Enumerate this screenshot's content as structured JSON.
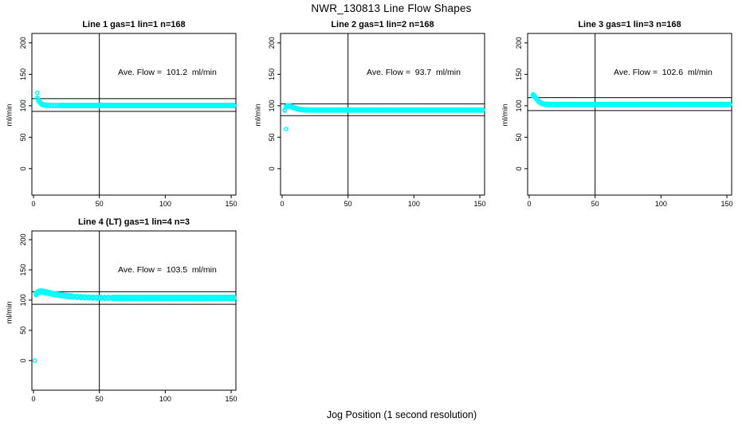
{
  "chart_data": {
    "type": "scatter",
    "main_title": "NWR_130813  Line Flow Shapes",
    "shared_xlabel": "Jog Position (1 second resolution)",
    "point_color": "#00FFFF",
    "line_color": "#000000",
    "axes": {
      "x_ticks": [
        0,
        50,
        100,
        150
      ],
      "y_ticks": [
        0,
        50,
        100,
        150,
        200
      ],
      "xlim": [
        -1.2,
        153.6
      ],
      "ylim": [
        -42,
        215
      ],
      "grid": false
    },
    "panels": [
      {
        "title": "Line 1 gas=1 lin=1 n=168",
        "ylabel": "ml/min",
        "annotation": "Ave. Flow =  101.2  ml/min",
        "ave_flow_ml_min": 101.2,
        "n": 168,
        "vline_x": 50,
        "ref_lines": [
          111.3,
          91.1
        ],
        "runs_offsets": [
          -0.7,
          0.7
        ],
        "outliers": [
          [
            3,
            120.5
          ]
        ],
        "head_points": [
          [
            3,
            112
          ],
          [
            4,
            108
          ],
          [
            5,
            105.2
          ],
          [
            6,
            103.2
          ],
          [
            7,
            101.9
          ],
          [
            8,
            101.2
          ],
          [
            9,
            100.9
          ],
          [
            10,
            100.7
          ],
          [
            12,
            100.6
          ],
          [
            14,
            100.5
          ],
          [
            16,
            100.5
          ],
          [
            18,
            100.5
          ],
          [
            20,
            100.5
          ]
        ],
        "tail": {
          "from": 21,
          "to": 152,
          "step": 1,
          "y": 100.5
        }
      },
      {
        "title": "Line 2 gas=1 lin=2 n=168",
        "ylabel": "ml/min",
        "annotation": "Ave. Flow =  93.7  ml/min",
        "ave_flow_ml_min": 93.7,
        "n": 168,
        "vline_x": 50,
        "ref_lines": [
          103.1,
          84.3
        ],
        "runs_offsets": [
          -0.7,
          0.7
        ],
        "outliers": [
          [
            3,
            63
          ]
        ],
        "head_points": [
          [
            2,
            93
          ],
          [
            3,
            98.6
          ],
          [
            4,
            99.8
          ],
          [
            5,
            99.8
          ],
          [
            6,
            99.2
          ],
          [
            7,
            98.3
          ],
          [
            8,
            97.4
          ],
          [
            9,
            96.6
          ],
          [
            10,
            95.9
          ],
          [
            11,
            95.3
          ],
          [
            12,
            94.8
          ],
          [
            13,
            94.4
          ],
          [
            14,
            94.1
          ],
          [
            15,
            93.8
          ],
          [
            16,
            93.6
          ],
          [
            17,
            93.5
          ],
          [
            18,
            93.4
          ],
          [
            19,
            93.3
          ],
          [
            20,
            93.3
          ]
        ],
        "tail": {
          "from": 21,
          "to": 152,
          "step": 1,
          "y": 93.2
        }
      },
      {
        "title": "Line 3 gas=1 lin=3 n=168",
        "ylabel": "ml/min",
        "annotation": "Ave. Flow =  102.6  ml/min",
        "ave_flow_ml_min": 102.6,
        "n": 168,
        "vline_x": 50,
        "ref_lines": [
          112.9,
          92.3
        ],
        "runs_offsets": [
          -0.7,
          0.7
        ],
        "outliers": [
          [
            3,
            118
          ]
        ],
        "head_points": [
          [
            3,
            116
          ],
          [
            4,
            114.8
          ],
          [
            5,
            112.4
          ],
          [
            6,
            109.8
          ],
          [
            7,
            107.3
          ],
          [
            8,
            105.4
          ],
          [
            9,
            104.1
          ],
          [
            10,
            103.3
          ],
          [
            11,
            102.8
          ],
          [
            12,
            102.5
          ],
          [
            13,
            102.3
          ],
          [
            14,
            102.2
          ],
          [
            15,
            102.1
          ],
          [
            16,
            102.1
          ],
          [
            18,
            102
          ],
          [
            20,
            102
          ]
        ],
        "tail": {
          "from": 21,
          "to": 152,
          "step": 1,
          "y": 102
        }
      },
      {
        "title": "Line 4 (LT) gas=1 lin=4 n=3",
        "ylabel": "ml/min",
        "annotation": "Ave. Flow =  103.5  ml/min",
        "ave_flow_ml_min": 103.5,
        "n": 3,
        "vline_x": 50,
        "ref_lines": [
          113.9,
          93.2
        ],
        "ylim": [
          -49,
          214.5
        ],
        "runs_offsets": [
          -1.5,
          0,
          1.5
        ],
        "outliers": [
          [
            1,
            0
          ]
        ],
        "head_points": [
          [
            2,
            110
          ],
          [
            3,
            112.5
          ],
          [
            4,
            113.8
          ],
          [
            5,
            114.2
          ],
          [
            6,
            114.2
          ],
          [
            7,
            114
          ],
          [
            8,
            113.6
          ],
          [
            9,
            113.1
          ],
          [
            10,
            112.6
          ],
          [
            12,
            111.6
          ],
          [
            14,
            110.7
          ],
          [
            16,
            109.9
          ],
          [
            18,
            109.1
          ],
          [
            20,
            108.4
          ],
          [
            22,
            107.8
          ],
          [
            24,
            107.2
          ],
          [
            26,
            106.7
          ],
          [
            28,
            106.3
          ],
          [
            30,
            105.9
          ],
          [
            33,
            105.4
          ],
          [
            36,
            105
          ],
          [
            39,
            104.7
          ],
          [
            42,
            104.4
          ],
          [
            45,
            104.2
          ],
          [
            48,
            104
          ],
          [
            51,
            103.9
          ],
          [
            54,
            103.8
          ],
          [
            57,
            103.7
          ],
          [
            60,
            103.7
          ]
        ],
        "tail": {
          "from": 61,
          "to": 152,
          "step": 1,
          "y": 103.6
        }
      }
    ]
  }
}
